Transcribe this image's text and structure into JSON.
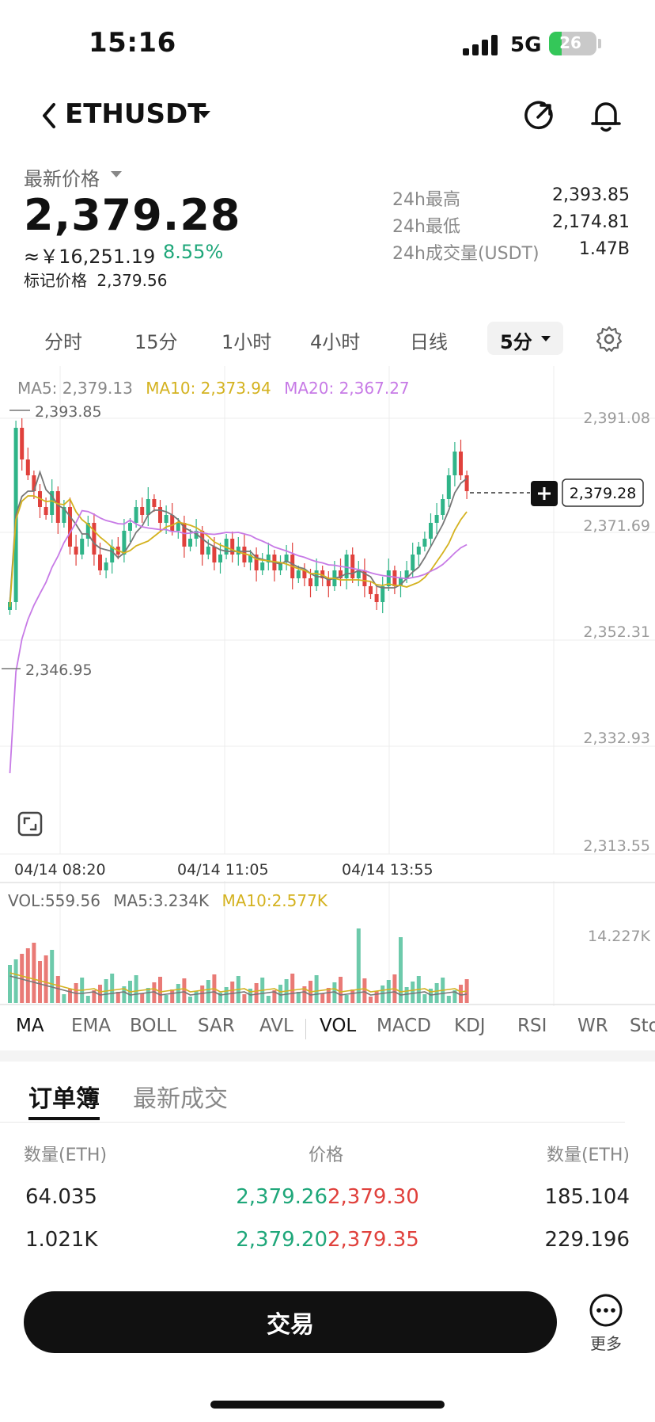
{
  "status_bar": {
    "time": "15:16",
    "network": "5G",
    "battery": "26"
  },
  "header": {
    "pair": "ETHUSDT"
  },
  "price": {
    "latest_label": "最新价格",
    "last": "2,379.28",
    "cny": "≈￥16,251.19",
    "change_pct": "8.55%",
    "mark_label": "标记价格",
    "mark_value": "2,379.56"
  },
  "stats": [
    {
      "label": "24h最高",
      "value": "2,393.85"
    },
    {
      "label": "24h最低",
      "value": "2,174.81"
    },
    {
      "label": "24h成交量(USDT)",
      "value": "1.47B"
    }
  ],
  "timeframes": [
    "分时",
    "15分",
    "1小时",
    "4小时",
    "日线"
  ],
  "timeframe_selected": "5分",
  "ma_legend": {
    "ma5": "MA5: 2,379.13",
    "ma10": "MA10: 2,373.94",
    "ma20": "MA20: 2,367.27"
  },
  "chart_data": {
    "type": "candlestick",
    "y_ticks": [
      "2,391.08",
      "2,371.69",
      "2,352.31",
      "2,332.93",
      "2,313.55"
    ],
    "x_ticks": [
      "04/14 08:20",
      "04/14 11:05",
      "04/14 13:55"
    ],
    "high_marker": "2,393.85",
    "low_marker": "2,346.95",
    "last_price_tag": "2,379.28",
    "ylim": [
      2313.55,
      2391.08
    ],
    "colors": {
      "up": "#2fb488",
      "down": "#e0413c",
      "ma5": "#777777",
      "ma10": "#d4b21f",
      "ma20": "#c77ae6"
    },
    "volume": {
      "vol": "VOL:559.56",
      "ma5": "MA5:3.234K",
      "ma10": "MA10:2.577K",
      "axis_max": "14.227K"
    }
  },
  "indicators": [
    "MA",
    "EMA",
    "BOLL",
    "SAR",
    "AVL",
    "VOL",
    "MACD",
    "KDJ",
    "RSI",
    "WR",
    "Sto"
  ],
  "orderbook": {
    "tabs": [
      "订单簿",
      "最新成交"
    ],
    "headers": {
      "left": "数量(ETH)",
      "mid": "价格",
      "right": "数量(ETH)"
    },
    "rows": [
      {
        "bid_qty": "64.035",
        "bid_price": "2,379.26",
        "ask_price": "2,379.30",
        "ask_qty": "185.104"
      },
      {
        "bid_qty": "1.021K",
        "bid_price": "2,379.20",
        "ask_price": "2,379.35",
        "ask_qty": "229.196"
      }
    ]
  },
  "bottom": {
    "trade_label": "交易",
    "more_label": "更多"
  }
}
